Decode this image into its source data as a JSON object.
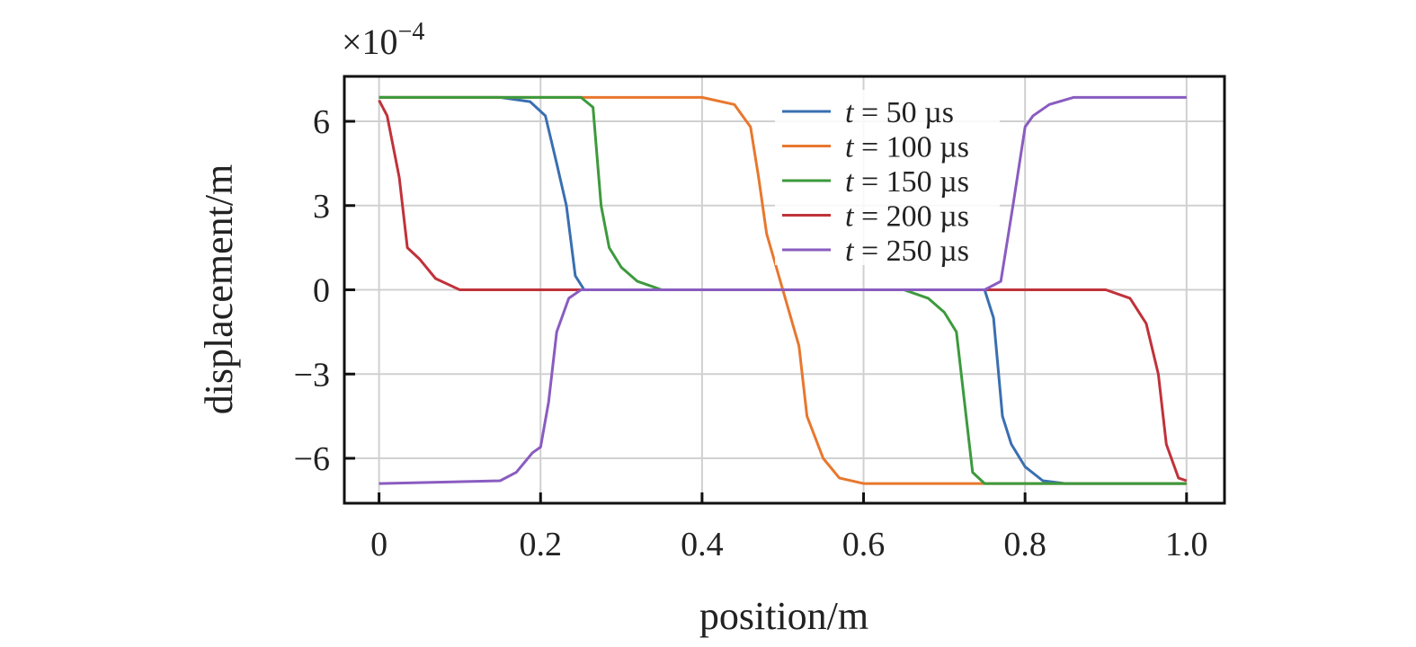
{
  "chart_data": {
    "type": "line",
    "title": "",
    "xlabel": "position/m",
    "ylabel": "displacement/m",
    "y_multiplier": "×10",
    "y_multiplier_exponent": "−4",
    "xlim": [
      -0.043,
      1.047
    ],
    "ylim": [
      -7.6,
      7.6
    ],
    "xticks": [
      0,
      0.2,
      0.4,
      0.6,
      0.8,
      1.0
    ],
    "xtick_labels": [
      "0",
      "0.2",
      "0.4",
      "0.6",
      "0.8",
      "1.0"
    ],
    "yticks": [
      6,
      3,
      0,
      -3,
      -6
    ],
    "ytick_labels": [
      "6",
      "3",
      "0",
      "−3",
      "−6"
    ],
    "grid": true,
    "legend_position": "top-right",
    "series": [
      {
        "name": "t = 50 µs",
        "legend_italic": "t",
        "legend_rest": " = 50 µs",
        "color": "#3a6fb0",
        "x": [
          0,
          0.15,
          0.187,
          0.206,
          0.22,
          0.232,
          0.243,
          0.254,
          0.75,
          0.761,
          0.772,
          0.783,
          0.8,
          0.822,
          0.85,
          1.0
        ],
        "y": [
          6.85,
          6.85,
          6.7,
          6.2,
          4.5,
          3,
          0.5,
          0,
          0,
          -1,
          -4.5,
          -5.5,
          -6.3,
          -6.8,
          -6.9,
          -6.9
        ]
      },
      {
        "name": "t = 100 µs",
        "legend_italic": "t",
        "legend_rest": " = 100 µs",
        "color": "#e8772e",
        "x": [
          0,
          0.4,
          0.44,
          0.46,
          0.47,
          0.48,
          0.5,
          0.52,
          0.53,
          0.55,
          0.57,
          0.6,
          1.0
        ],
        "y": [
          6.85,
          6.85,
          6.6,
          5.8,
          4,
          2,
          0,
          -2,
          -4.5,
          -6,
          -6.7,
          -6.9,
          -6.9
        ]
      },
      {
        "name": "t = 150 µs",
        "legend_italic": "t",
        "legend_rest": " = 150 µs",
        "color": "#3c9a3c",
        "x": [
          0,
          0.25,
          0.265,
          0.275,
          0.285,
          0.3,
          0.32,
          0.35,
          0.65,
          0.68,
          0.7,
          0.715,
          0.725,
          0.735,
          0.75,
          1.0
        ],
        "y": [
          6.85,
          6.85,
          6.5,
          3,
          1.5,
          0.8,
          0.3,
          0,
          0,
          -0.3,
          -0.8,
          -1.5,
          -4,
          -6.5,
          -6.9,
          -6.9
        ]
      },
      {
        "name": "t = 200 µs",
        "legend_italic": "t",
        "legend_rest": " = 200 µs",
        "color": "#c0323a",
        "x": [
          0,
          0.01,
          0.025,
          0.035,
          0.05,
          0.07,
          0.1,
          0.9,
          0.93,
          0.95,
          0.965,
          0.975,
          0.99,
          1.0
        ],
        "y": [
          6.75,
          6.2,
          4,
          1.5,
          1.1,
          0.4,
          0,
          0,
          -0.3,
          -1.2,
          -3,
          -5.5,
          -6.7,
          -6.8
        ]
      },
      {
        "name": "t = 250 µs",
        "legend_italic": "t",
        "legend_rest": " = 250 µs",
        "color": "#8a5cc0",
        "x": [
          0,
          0.15,
          0.17,
          0.19,
          0.2,
          0.21,
          0.22,
          0.235,
          0.25,
          0.75,
          0.77,
          0.785,
          0.8,
          0.81,
          0.83,
          0.86,
          1.0
        ],
        "y": [
          -6.9,
          -6.8,
          -6.5,
          -5.8,
          -5.6,
          -4,
          -1.5,
          -0.3,
          0,
          0,
          0.3,
          3,
          5.8,
          6.2,
          6.6,
          6.85,
          6.85
        ]
      }
    ]
  }
}
